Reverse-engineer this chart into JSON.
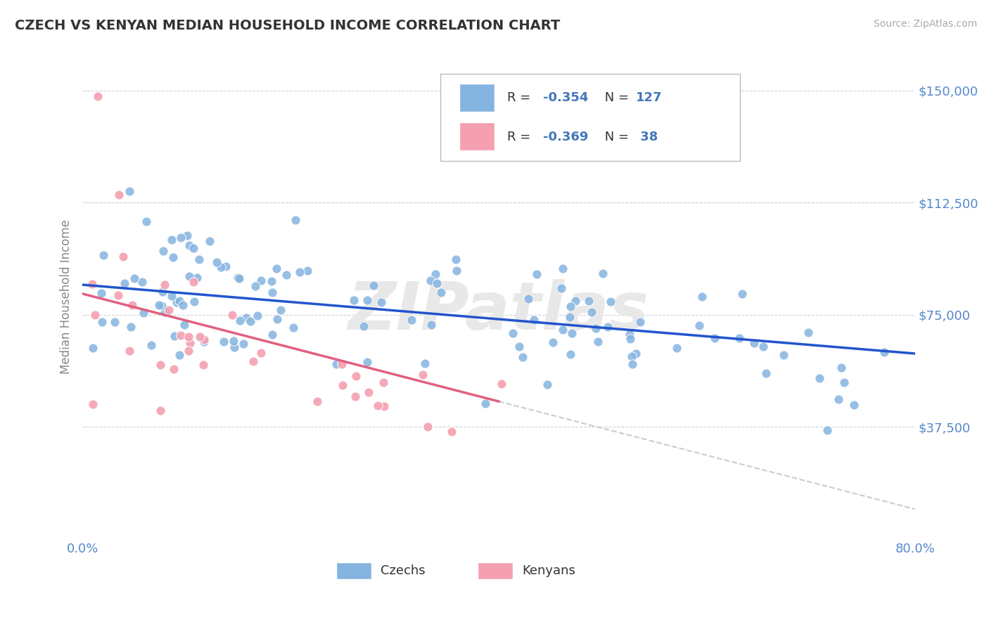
{
  "title": "CZECH VS KENYAN MEDIAN HOUSEHOLD INCOME CORRELATION CHART",
  "source": "Source: ZipAtlas.com",
  "ylabel": "Median Household Income",
  "xlim": [
    0.0,
    80.0
  ],
  "ylim": [
    0,
    162000
  ],
  "czech_color": "#85B4E0",
  "kenyan_color": "#F4A0B0",
  "czech_line_color": "#2255CC",
  "kenyan_line_color": "#E06080",
  "dashed_ext_color": "#CCCCCC",
  "R_czech": -0.354,
  "N_czech": 127,
  "R_kenyan": -0.369,
  "N_kenyan": 38,
  "title_color": "#333333",
  "axis_label_color": "#5588CC",
  "grid_color": "#CCCCCC",
  "watermark": "ZIPatlas",
  "watermark_color": "#E8E8E8",
  "legend_text_color": "#4477BB",
  "source_color": "#AAAAAA",
  "ylabel_color": "#888888"
}
